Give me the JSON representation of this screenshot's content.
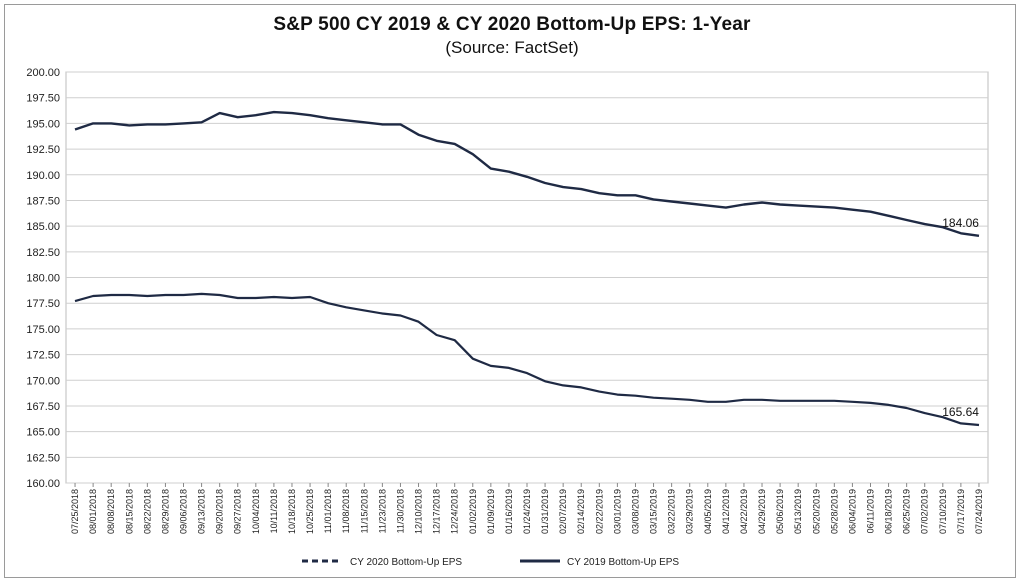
{
  "chart_data": {
    "type": "line",
    "title": "S&P 500 CY 2019 & CY 2020 Bottom-Up  EPS: 1-Year",
    "subtitle": "(Source: FactSet)",
    "xlabel": "",
    "ylabel": "",
    "ylim": [
      160,
      200
    ],
    "ystep": 2.5,
    "y_tick_labels": [
      "160.00",
      "162.50",
      "165.00",
      "167.50",
      "170.00",
      "172.50",
      "175.00",
      "177.50",
      "180.00",
      "182.50",
      "185.00",
      "187.50",
      "190.00",
      "192.50",
      "195.00",
      "197.50",
      "200.00"
    ],
    "x_tick_labels": [
      "07/25/2018",
      "08/01/2018",
      "08/08/2018",
      "08/15/2018",
      "08/22/2018",
      "08/29/2018",
      "09/06/2018",
      "09/13/2018",
      "09/20/2018",
      "09/27/2018",
      "10/04/2018",
      "10/11/2018",
      "10/18/2018",
      "10/25/2018",
      "11/01/2018",
      "11/08/2018",
      "11/15/2018",
      "11/23/2018",
      "11/30/2018",
      "12/10/2018",
      "12/17/2018",
      "12/24/2018",
      "01/02/2019",
      "01/09/2019",
      "01/16/2019",
      "01/24/2019",
      "01/31/2019",
      "02/07/2019",
      "02/14/2019",
      "02/22/2019",
      "03/01/2019",
      "03/08/2019",
      "03/15/2019",
      "03/22/2019",
      "03/29/2019",
      "04/05/2019",
      "04/12/2019",
      "04/22/2019",
      "04/29/2019",
      "05/06/2019",
      "05/13/2019",
      "05/20/2019",
      "05/28/2019",
      "06/04/2019",
      "06/11/2019",
      "06/18/2019",
      "06/25/2019",
      "07/02/2019",
      "07/10/2019",
      "07/17/2019",
      "07/24/2019"
    ],
    "grid": true,
    "legend_position": "bottom",
    "series": [
      {
        "name": "CY 2020 Bottom-Up EPS",
        "style": "dashed",
        "color": "#1f2a44",
        "end_label": "184.06",
        "values": [
          194.4,
          195.0,
          195.0,
          194.8,
          194.9,
          194.9,
          195.0,
          195.1,
          196.0,
          195.6,
          195.8,
          196.1,
          196.0,
          195.8,
          195.5,
          195.3,
          195.1,
          194.9,
          194.9,
          193.9,
          193.3,
          193.0,
          192.0,
          190.6,
          190.3,
          189.8,
          189.2,
          188.8,
          188.6,
          188.2,
          188.0,
          188.0,
          187.6,
          187.4,
          187.2,
          187.0,
          186.8,
          187.1,
          187.3,
          187.1,
          187.0,
          186.9,
          186.8,
          186.6,
          186.4,
          186.0,
          185.6,
          185.2,
          184.9,
          184.3,
          184.06
        ]
      },
      {
        "name": "CY 2019 Bottom-Up EPS",
        "style": "solid",
        "color": "#1f2a44",
        "end_label": "165.64",
        "values": [
          177.7,
          178.2,
          178.3,
          178.3,
          178.2,
          178.3,
          178.3,
          178.4,
          178.3,
          178.0,
          178.0,
          178.1,
          178.0,
          178.1,
          177.5,
          177.1,
          176.8,
          176.5,
          176.3,
          175.7,
          174.4,
          173.9,
          172.1,
          171.4,
          171.2,
          170.7,
          169.9,
          169.5,
          169.3,
          168.9,
          168.6,
          168.5,
          168.3,
          168.2,
          168.1,
          167.9,
          167.9,
          168.1,
          168.1,
          168.0,
          168.0,
          168.0,
          168.0,
          167.9,
          167.8,
          167.6,
          167.3,
          166.8,
          166.4,
          165.8,
          165.64
        ]
      }
    ]
  }
}
